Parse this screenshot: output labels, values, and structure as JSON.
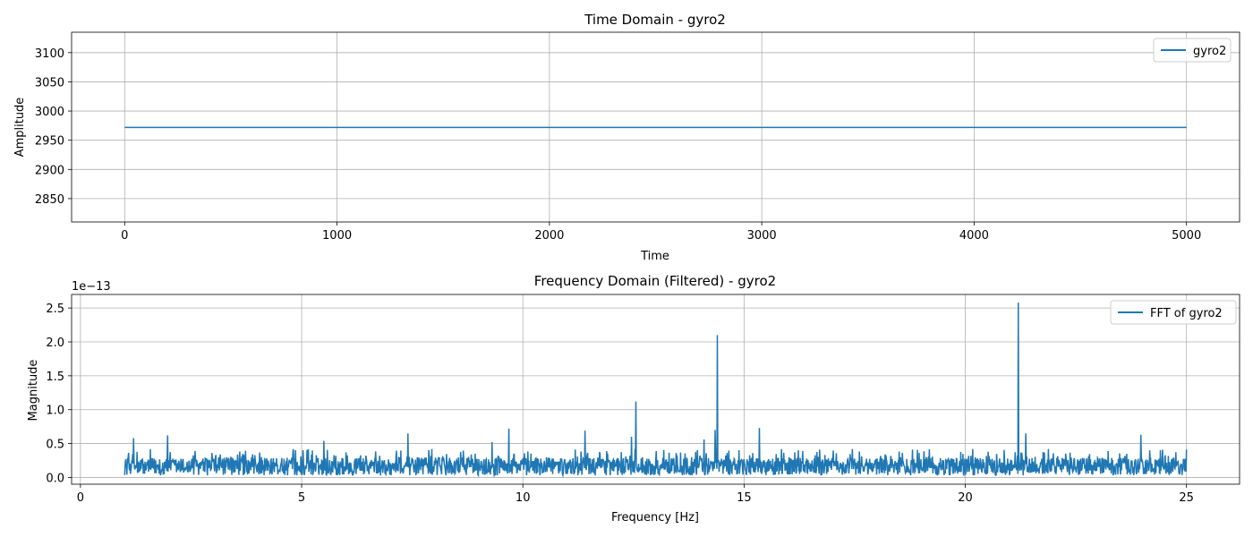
{
  "chart_data": [
    {
      "type": "line",
      "title": "Time Domain - gyro2",
      "xlabel": "Time",
      "ylabel": "Amplitude",
      "xlim": [
        -250,
        5250
      ],
      "ylim": [
        2810,
        3135
      ],
      "xticks": [
        0,
        1000,
        2000,
        3000,
        4000,
        5000
      ],
      "xtick_labels": [
        "0",
        "1000",
        "2000",
        "3000",
        "4000",
        "5000"
      ],
      "yticks": [
        2850,
        2900,
        2950,
        3000,
        3050,
        3100
      ],
      "ytick_labels": [
        "2850",
        "2900",
        "2950",
        "3000",
        "3050",
        "3100"
      ],
      "grid": true,
      "legend_position": "top-right",
      "color": "#1f77b4",
      "series": [
        {
          "name": "gyro2",
          "x": [
            0,
            5000
          ],
          "y": [
            2972,
            2972
          ]
        }
      ]
    },
    {
      "type": "line",
      "title": "Frequency Domain (Filtered) - gyro2",
      "xlabel": "Frequency [Hz]",
      "ylabel": "Magnitude",
      "offset_label": "1e−13",
      "xlim": [
        -0.2,
        26.2
      ],
      "ylim": [
        -0.1,
        2.7
      ],
      "xticks": [
        0,
        5,
        10,
        15,
        20,
        25
      ],
      "xtick_labels": [
        "0",
        "5",
        "10",
        "15",
        "20",
        "25"
      ],
      "yticks": [
        0.0,
        0.5,
        1.0,
        1.5,
        2.0,
        2.5
      ],
      "ytick_labels": [
        "0.0",
        "0.5",
        "1.0",
        "1.5",
        "2.0",
        "2.5"
      ],
      "grid": true,
      "legend_position": "top-right",
      "color": "#1f77b4",
      "series": [
        {
          "name": "FFT of gyro2",
          "x_range": [
            1,
            25
          ],
          "noise_baseline": 0.15,
          "noise_max": 0.42,
          "peaks": [
            {
              "x": 1.2,
              "y": 0.58
            },
            {
              "x": 1.97,
              "y": 0.62
            },
            {
              "x": 5.5,
              "y": 0.54
            },
            {
              "x": 7.4,
              "y": 0.65
            },
            {
              "x": 9.3,
              "y": 0.52
            },
            {
              "x": 9.68,
              "y": 0.72
            },
            {
              "x": 11.4,
              "y": 0.69
            },
            {
              "x": 12.45,
              "y": 0.6
            },
            {
              "x": 12.55,
              "y": 1.12
            },
            {
              "x": 14.1,
              "y": 0.56
            },
            {
              "x": 14.35,
              "y": 0.7
            },
            {
              "x": 14.4,
              "y": 2.1
            },
            {
              "x": 15.35,
              "y": 0.73
            },
            {
              "x": 21.2,
              "y": 2.58
            },
            {
              "x": 21.37,
              "y": 0.65
            },
            {
              "x": 23.97,
              "y": 0.63
            }
          ]
        }
      ]
    }
  ]
}
